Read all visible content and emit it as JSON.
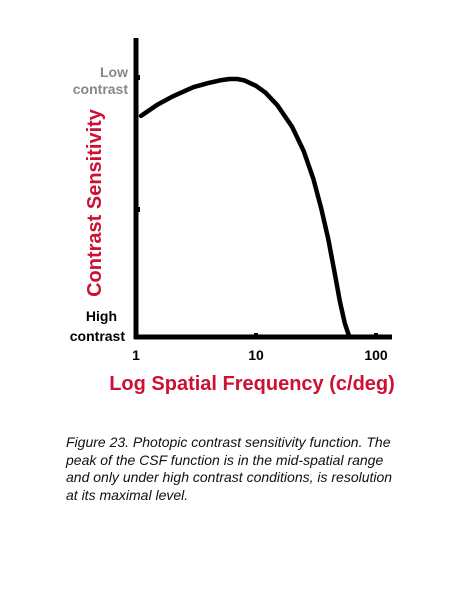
{
  "chart_data": {
    "type": "line",
    "xscale": "log",
    "xlabel": "Log Spatial Frequency (c/deg)",
    "ylabel": "Contrast Sensitivity",
    "x_ticks": [
      1,
      10,
      100
    ],
    "x_tick_labels": [
      "1",
      "10",
      "100"
    ],
    "xlim": [
      1,
      120
    ],
    "y_top_label": [
      "Low",
      "contrast"
    ],
    "y_bottom_label": [
      "High",
      "contrast"
    ],
    "ylim": [
      0,
      1
    ],
    "grid": false,
    "series": [
      {
        "x": [
          1.1,
          1.5,
          2.0,
          3.0,
          4.0,
          5.0,
          6.0,
          7.0,
          8.0,
          10,
          12,
          15,
          20,
          25,
          30,
          35,
          40,
          45,
          50,
          55,
          60
        ],
        "y": [
          0.81,
          0.85,
          0.88,
          0.915,
          0.93,
          0.94,
          0.945,
          0.945,
          0.94,
          0.92,
          0.895,
          0.85,
          0.77,
          0.68,
          0.58,
          0.47,
          0.36,
          0.24,
          0.13,
          0.05,
          0.0
        ]
      }
    ],
    "colors": {
      "axis": "#000000",
      "curve": "#000000",
      "accent": "#cc1133",
      "muted": "#888888"
    }
  },
  "caption": "Figure 23. Photopic contrast sensitivity function. The peak of the CSF function is in the mid-spatial range and only under high contrast conditions, is resolution at its maximal level."
}
